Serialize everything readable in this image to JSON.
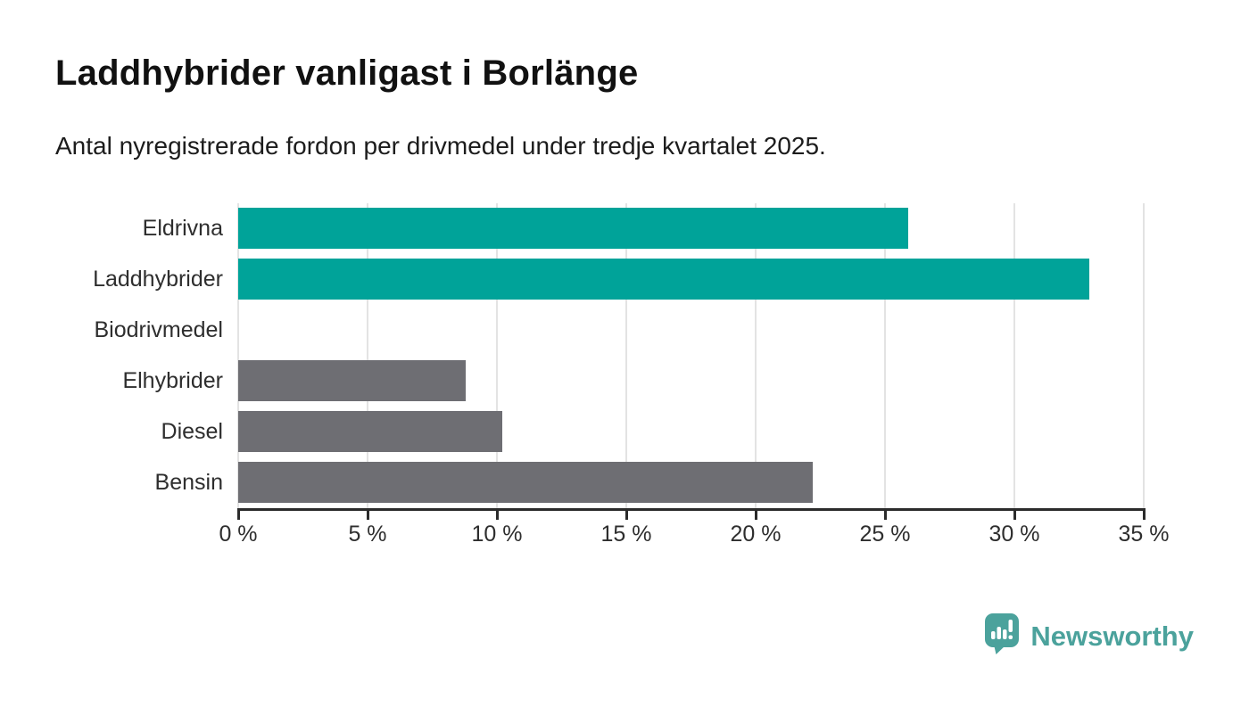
{
  "header": {
    "title": "Laddhybrider vanligast i Borlänge",
    "subtitle": "Antal nyregistrerade fordon per drivmedel under tredje kvartalet 2025."
  },
  "chart_data": {
    "type": "bar",
    "orientation": "horizontal",
    "title": "Laddhybrider vanligast i Borlänge",
    "subtitle": "Antal nyregistrerade fordon per drivmedel under tredje kvartalet 2025.",
    "categories": [
      "Eldrivna",
      "Laddhybrider",
      "Biodrivmedel",
      "Elhybrider",
      "Diesel",
      "Bensin"
    ],
    "values": [
      25.9,
      32.9,
      0,
      8.8,
      10.2,
      22.2
    ],
    "unit": "%",
    "xlim": [
      0,
      35
    ],
    "x_tick_values": [
      0,
      5,
      10,
      15,
      20,
      25,
      30,
      35
    ],
    "x_tick_labels": [
      "0 %",
      "5 %",
      "10 %",
      "15 %",
      "20 %",
      "25 %",
      "30 %",
      "35 %"
    ],
    "bar_colors": [
      "#00a399",
      "#00a399",
      "#6e6e73",
      "#6e6e73",
      "#6e6e73",
      "#6e6e73"
    ],
    "grid": true,
    "legend": false
  },
  "colors": {
    "highlight_teal": "#00a399",
    "neutral_gray": "#6e6e73",
    "gridline": "#e3e3e3",
    "axis": "#2b2b2b",
    "text": "#2e2e2e",
    "brand_teal": "#4ba29c"
  },
  "footer": {
    "brand": "Newsworthy"
  }
}
